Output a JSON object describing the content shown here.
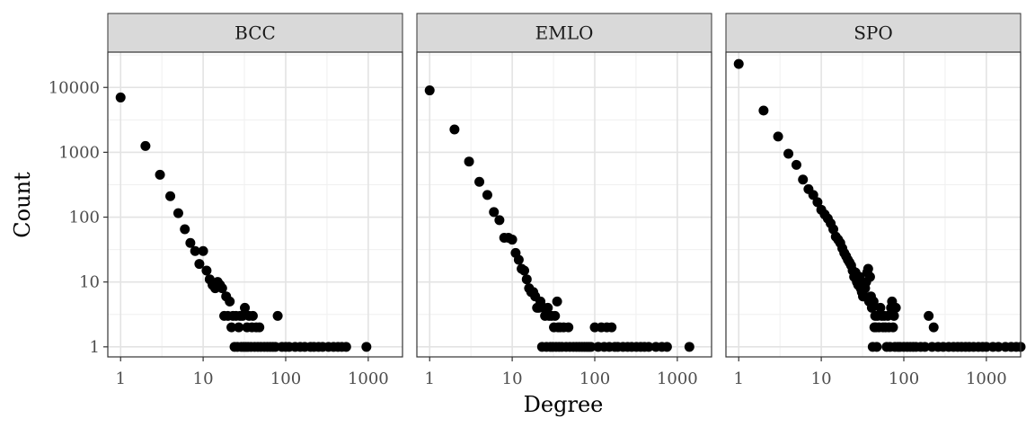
{
  "chart_data": {
    "type": "scatter",
    "xlabel": "Degree",
    "ylabel": "Count",
    "x_scale": "log10",
    "y_scale": "log10",
    "xlim": [
      0.7,
      2600
    ],
    "ylim": [
      0.7,
      35000
    ],
    "x_ticks": [
      1,
      10,
      100,
      1000
    ],
    "x_tick_labels": [
      "1",
      "10",
      "100",
      "1000"
    ],
    "y_ticks": [
      1,
      10,
      100,
      1000,
      10000
    ],
    "y_tick_labels": [
      "1",
      "10",
      "100",
      "1000",
      "10000"
    ],
    "grid": true,
    "point_color": "#000000",
    "panel_border_color": "#333333",
    "strip_fill": "#d9d9d9",
    "panels": [
      {
        "name": "BCC",
        "points": [
          [
            1,
            7000
          ],
          [
            2,
            1250
          ],
          [
            3,
            450
          ],
          [
            4,
            210
          ],
          [
            5,
            115
          ],
          [
            6,
            65
          ],
          [
            7,
            40
          ],
          [
            8,
            30
          ],
          [
            9,
            19
          ],
          [
            10,
            30
          ],
          [
            11,
            15
          ],
          [
            12,
            11
          ],
          [
            13,
            9
          ],
          [
            14,
            8
          ],
          [
            15,
            10
          ],
          [
            16,
            9
          ],
          [
            17,
            8
          ],
          [
            18,
            3
          ],
          [
            19,
            6
          ],
          [
            20,
            3
          ],
          [
            21,
            5
          ],
          [
            22,
            2
          ],
          [
            23,
            3
          ],
          [
            24,
            1
          ],
          [
            25,
            3
          ],
          [
            26,
            1
          ],
          [
            27,
            2
          ],
          [
            28,
            3
          ],
          [
            29,
            1
          ],
          [
            30,
            3
          ],
          [
            31,
            1
          ],
          [
            32,
            4
          ],
          [
            33,
            1
          ],
          [
            34,
            2
          ],
          [
            35,
            1
          ],
          [
            36,
            3
          ],
          [
            38,
            1
          ],
          [
            39,
            2
          ],
          [
            40,
            3
          ],
          [
            42,
            1
          ],
          [
            44,
            2
          ],
          [
            46,
            1
          ],
          [
            48,
            2
          ],
          [
            50,
            1
          ],
          [
            55,
            1
          ],
          [
            60,
            1
          ],
          [
            65,
            1
          ],
          [
            70,
            1
          ],
          [
            75,
            1
          ],
          [
            80,
            3
          ],
          [
            90,
            1
          ],
          [
            100,
            1
          ],
          [
            110,
            1
          ],
          [
            130,
            1
          ],
          [
            150,
            1
          ],
          [
            170,
            1
          ],
          [
            200,
            1
          ],
          [
            220,
            1
          ],
          [
            250,
            1
          ],
          [
            280,
            1
          ],
          [
            330,
            1
          ],
          [
            380,
            1
          ],
          [
            430,
            1
          ],
          [
            480,
            1
          ],
          [
            540,
            1
          ],
          [
            950,
            1
          ]
        ]
      },
      {
        "name": "EMLO",
        "points": [
          [
            1,
            9000
          ],
          [
            2,
            2250
          ],
          [
            3,
            720
          ],
          [
            4,
            350
          ],
          [
            5,
            220
          ],
          [
            6,
            120
          ],
          [
            7,
            90
          ],
          [
            8,
            48
          ],
          [
            9,
            48
          ],
          [
            10,
            45
          ],
          [
            11,
            28
          ],
          [
            12,
            22
          ],
          [
            13,
            16
          ],
          [
            14,
            15
          ],
          [
            15,
            11
          ],
          [
            16,
            8
          ],
          [
            17,
            7
          ],
          [
            18,
            7
          ],
          [
            19,
            6
          ],
          [
            20,
            4
          ],
          [
            21,
            4
          ],
          [
            22,
            5
          ],
          [
            23,
            1
          ],
          [
            24,
            4
          ],
          [
            25,
            3
          ],
          [
            26,
            1
          ],
          [
            27,
            4
          ],
          [
            28,
            3
          ],
          [
            29,
            1
          ],
          [
            30,
            3
          ],
          [
            31,
            1
          ],
          [
            32,
            2
          ],
          [
            33,
            3
          ],
          [
            34,
            1
          ],
          [
            35,
            5
          ],
          [
            36,
            2
          ],
          [
            37,
            1
          ],
          [
            38,
            2
          ],
          [
            40,
            1
          ],
          [
            42,
            2
          ],
          [
            45,
            1
          ],
          [
            48,
            2
          ],
          [
            50,
            1
          ],
          [
            55,
            1
          ],
          [
            60,
            1
          ],
          [
            65,
            1
          ],
          [
            70,
            1
          ],
          [
            75,
            1
          ],
          [
            80,
            1
          ],
          [
            85,
            1
          ],
          [
            90,
            1
          ],
          [
            100,
            2
          ],
          [
            110,
            1
          ],
          [
            120,
            2
          ],
          [
            130,
            1
          ],
          [
            140,
            2
          ],
          [
            150,
            1
          ],
          [
            160,
            2
          ],
          [
            175,
            1
          ],
          [
            190,
            1
          ],
          [
            220,
            1
          ],
          [
            250,
            1
          ],
          [
            280,
            1
          ],
          [
            320,
            1
          ],
          [
            360,
            1
          ],
          [
            400,
            1
          ],
          [
            450,
            1
          ],
          [
            550,
            1
          ],
          [
            650,
            1
          ],
          [
            750,
            1
          ],
          [
            1400,
            1
          ]
        ]
      },
      {
        "name": "SPO",
        "points": [
          [
            1,
            23000
          ],
          [
            2,
            4400
          ],
          [
            3,
            1750
          ],
          [
            4,
            950
          ],
          [
            5,
            640
          ],
          [
            6,
            380
          ],
          [
            7,
            270
          ],
          [
            8,
            220
          ],
          [
            9,
            170
          ],
          [
            10,
            130
          ],
          [
            11,
            110
          ],
          [
            12,
            95
          ],
          [
            13,
            80
          ],
          [
            14,
            65
          ],
          [
            15,
            50
          ],
          [
            16,
            45
          ],
          [
            17,
            40
          ],
          [
            18,
            33
          ],
          [
            19,
            28
          ],
          [
            20,
            25
          ],
          [
            21,
            22
          ],
          [
            22,
            20
          ],
          [
            23,
            18
          ],
          [
            24,
            15
          ],
          [
            25,
            12
          ],
          [
            26,
            14
          ],
          [
            27,
            10
          ],
          [
            28,
            9
          ],
          [
            29,
            12
          ],
          [
            30,
            8
          ],
          [
            31,
            7
          ],
          [
            32,
            6
          ],
          [
            33,
            6
          ],
          [
            34,
            8
          ],
          [
            35,
            10
          ],
          [
            36,
            14
          ],
          [
            37,
            16
          ],
          [
            38,
            5
          ],
          [
            39,
            12
          ],
          [
            40,
            6
          ],
          [
            41,
            4
          ],
          [
            42,
            1
          ],
          [
            43,
            5
          ],
          [
            44,
            2
          ],
          [
            45,
            3
          ],
          [
            46,
            2
          ],
          [
            47,
            1
          ],
          [
            48,
            3
          ],
          [
            50,
            2
          ],
          [
            52,
            4
          ],
          [
            54,
            3
          ],
          [
            56,
            2
          ],
          [
            58,
            3
          ],
          [
            60,
            2
          ],
          [
            62,
            1
          ],
          [
            64,
            3
          ],
          [
            66,
            2
          ],
          [
            68,
            1
          ],
          [
            70,
            4
          ],
          [
            72,
            5
          ],
          [
            74,
            2
          ],
          [
            76,
            3
          ],
          [
            78,
            1
          ],
          [
            80,
            4
          ],
          [
            85,
            1
          ],
          [
            90,
            1
          ],
          [
            100,
            1
          ],
          [
            110,
            1
          ],
          [
            120,
            1
          ],
          [
            130,
            1
          ],
          [
            140,
            1
          ],
          [
            160,
            1
          ],
          [
            180,
            1
          ],
          [
            200,
            3
          ],
          [
            220,
            1
          ],
          [
            230,
            2
          ],
          [
            260,
            1
          ],
          [
            300,
            1
          ],
          [
            350,
            1
          ],
          [
            400,
            1
          ],
          [
            450,
            1
          ],
          [
            500,
            1
          ],
          [
            560,
            1
          ],
          [
            620,
            1
          ],
          [
            700,
            1
          ],
          [
            800,
            1
          ],
          [
            900,
            1
          ],
          [
            1000,
            1
          ],
          [
            1200,
            1
          ],
          [
            1400,
            1
          ],
          [
            1700,
            1
          ],
          [
            2000,
            1
          ],
          [
            2300,
            1
          ],
          [
            2600,
            1
          ]
        ]
      }
    ]
  }
}
